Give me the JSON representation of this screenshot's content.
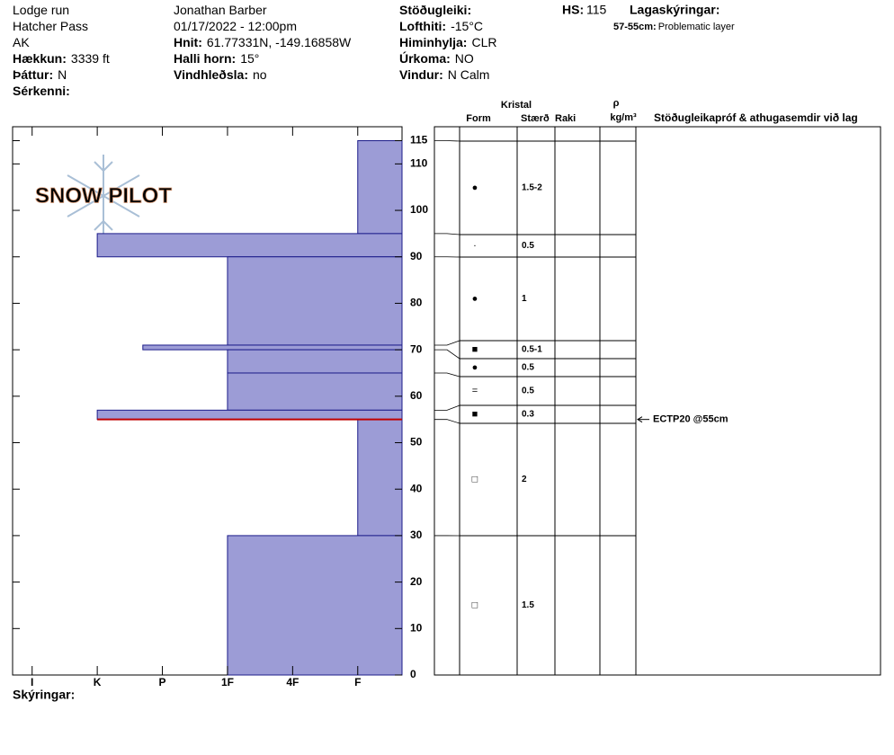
{
  "header": {
    "columns": [
      [
        {
          "value": "Lodge run"
        },
        {
          "value": "Hatcher Pass"
        },
        {
          "value": "AK"
        },
        {
          "label": "Hækkun:",
          "value": "3339 ft"
        },
        {
          "label": "Þáttur:",
          "value": "N"
        },
        {
          "label": "Sérkenni:"
        }
      ],
      [
        {
          "value": "Jonathan Barber"
        },
        {
          "value": "01/17/2022 - 12:00pm"
        },
        {
          "label": "Hnit:",
          "value": "61.77331N, -149.16858W"
        },
        {
          "label": "Halli horn:",
          "value": "15°"
        },
        {
          "label": "Vindhleðsla:",
          "value": "no"
        }
      ],
      [
        {
          "label": "Stöðugleiki:"
        },
        {
          "label": "Lofthiti:",
          "value": "-15°C"
        },
        {
          "label": "Himinhylja:",
          "value": "CLR"
        },
        {
          "label": "Úrkoma:",
          "value": "NO"
        },
        {
          "label": "Vindur:",
          "value": "N Calm"
        }
      ]
    ],
    "hs_label": "HS:",
    "hs": 115,
    "notes_title": "Lagaskýringar:",
    "notes": [
      {
        "label": "57-55cm:",
        "text": "Problematic layer"
      }
    ]
  },
  "logo": "SNOW PILOT",
  "profile": {
    "ylim": [
      0,
      118
    ],
    "yticks": [
      0,
      10,
      20,
      30,
      40,
      50,
      60,
      70,
      80,
      90,
      100,
      110,
      115
    ],
    "xlim": [
      6.3,
      0.32
    ],
    "xticks": [
      {
        "value": 6,
        "label": "I"
      },
      {
        "value": 5,
        "label": "K"
      },
      {
        "value": 4,
        "label": "P"
      },
      {
        "value": 3,
        "label": "1F"
      },
      {
        "value": 2,
        "label": "4F"
      },
      {
        "value": 1,
        "label": "F"
      }
    ],
    "color": "#9c9cd6",
    "layers": [
      {
        "top": 115,
        "bottom": 95,
        "hardness": 1,
        "form": "●",
        "size": "1.5-2"
      },
      {
        "top": 95,
        "bottom": 90,
        "hardness": 5,
        "form": "·",
        "size": "0.5"
      },
      {
        "top": 90,
        "bottom": 71,
        "hardness": 3,
        "form": "●",
        "size": "1"
      },
      {
        "top": 71,
        "bottom": 70,
        "hardness": 4.3,
        "form": "■",
        "size": "0.5-1"
      },
      {
        "top": 70,
        "bottom": 65,
        "hardness": 3,
        "form": "●",
        "size": "0.5"
      },
      {
        "top": 65,
        "bottom": 57,
        "hardness": 3,
        "form": "=",
        "size": "0.5"
      },
      {
        "top": 57,
        "bottom": 55,
        "hardness": 5,
        "form": "■",
        "size": "0.3"
      },
      {
        "top": 55,
        "bottom": 30,
        "hardness": 1,
        "form": "□",
        "size": "2"
      },
      {
        "top": 30,
        "bottom": 0,
        "hardness": 3,
        "form": "□",
        "size": "1.5"
      }
    ],
    "tests": [
      {
        "depth": 55,
        "text": "ECTP20 @55cm"
      }
    ],
    "legend_label": "Skýringar:"
  },
  "table": {
    "crystal": "Kristal",
    "form": "Form",
    "size": "Stærð",
    "moisture": "Raki",
    "rho": "ρ",
    "density": "kg/m³",
    "comments": "Stöðugleikapróf & athugasemdir við lag"
  }
}
